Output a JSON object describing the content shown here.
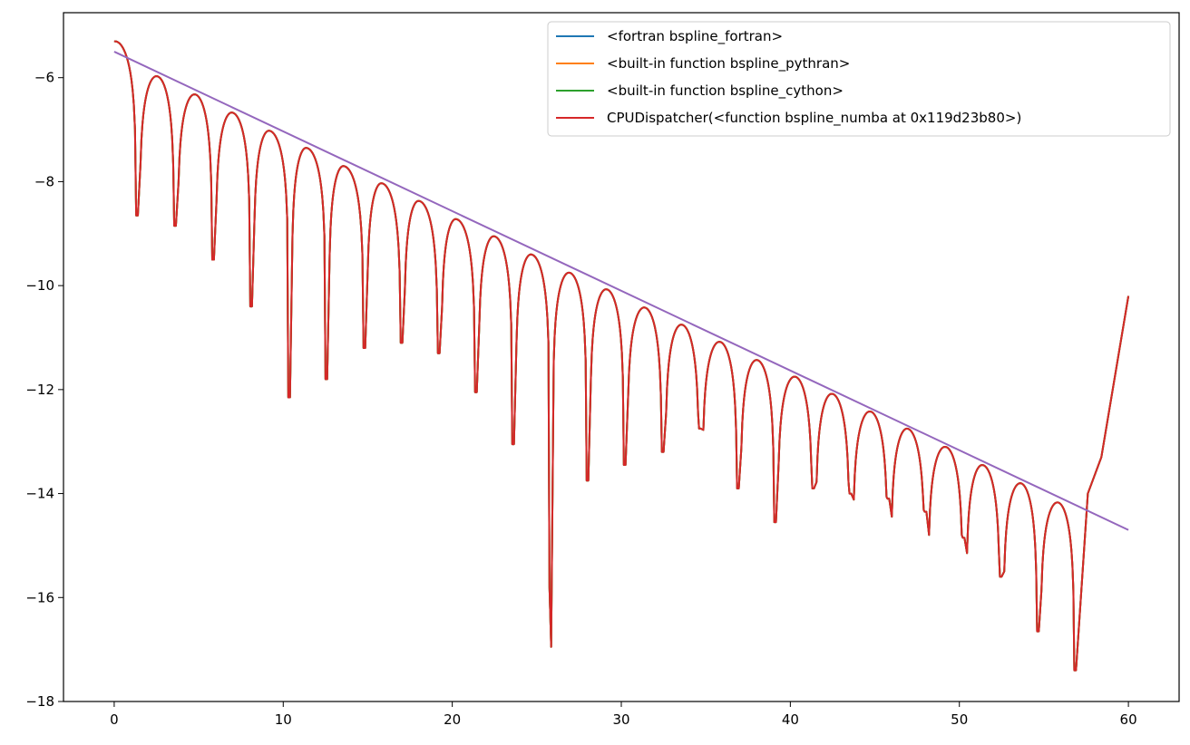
{
  "chart_data": {
    "type": "line",
    "title": "",
    "xlabel": "",
    "ylabel": "",
    "xlim": [
      -3,
      63
    ],
    "ylim": [
      -18,
      -4.75
    ],
    "xticks": [
      0,
      10,
      20,
      30,
      40,
      50,
      60
    ],
    "yticks": [
      -18,
      -16,
      -14,
      -12,
      -10,
      -8,
      -6
    ],
    "xtick_labels": [
      "0",
      "10",
      "20",
      "30",
      "40",
      "50",
      "60"
    ],
    "ytick_labels": [
      "−18",
      "−16",
      "−14",
      "−12",
      "−10",
      "−8",
      "−6"
    ],
    "grid": false,
    "legend_position": "top-right",
    "series": [
      {
        "name": "<fortran bspline_fortran>",
        "color": "#1f77b4",
        "minima": [
          {
            "x": 1.4,
            "y": -8.65
          },
          {
            "x": 3.65,
            "y": -8.85
          },
          {
            "x": 5.9,
            "y": -9.5
          },
          {
            "x": 8.15,
            "y": -10.4
          },
          {
            "x": 10.4,
            "y": -12.15
          },
          {
            "x": 12.6,
            "y": -11.8
          },
          {
            "x": 14.85,
            "y": -11.2
          },
          {
            "x": 17.05,
            "y": -11.1
          },
          {
            "x": 19.25,
            "y": -11.3
          },
          {
            "x": 21.45,
            "y": -12.05
          },
          {
            "x": 23.65,
            "y": -13.05
          },
          {
            "x": 25.85,
            "y": -16.95
          },
          {
            "x": 28.05,
            "y": -13.75
          },
          {
            "x": 30.25,
            "y": -13.45
          },
          {
            "x": 32.5,
            "y": -13.2
          },
          {
            "x": 34.7,
            "y": -12.75
          },
          {
            "x": 36.95,
            "y": -13.9
          },
          {
            "x": 39.15,
            "y": -14.55
          },
          {
            "x": 41.4,
            "y": -13.9
          },
          {
            "x": 43.6,
            "y": -14.0
          },
          {
            "x": 45.85,
            "y": -14.1
          },
          {
            "x": 48.05,
            "y": -14.35
          },
          {
            "x": 50.3,
            "y": -14.85
          },
          {
            "x": 52.5,
            "y": -15.6
          },
          {
            "x": 54.7,
            "y": -16.65
          },
          {
            "x": 56.9,
            "y": -17.4
          }
        ],
        "maxima": [
          {
            "x": 0.05,
            "y": -5.3
          },
          {
            "x": 2.5,
            "y": -5.97
          },
          {
            "x": 4.75,
            "y": -6.32
          },
          {
            "x": 6.95,
            "y": -6.67
          },
          {
            "x": 9.15,
            "y": -7.02
          },
          {
            "x": 11.35,
            "y": -7.35
          },
          {
            "x": 13.55,
            "y": -7.7
          },
          {
            "x": 15.8,
            "y": -8.03
          },
          {
            "x": 18.0,
            "y": -8.37
          },
          {
            "x": 20.2,
            "y": -8.72
          },
          {
            "x": 22.45,
            "y": -9.05
          },
          {
            "x": 24.65,
            "y": -9.4
          },
          {
            "x": 26.9,
            "y": -9.75
          },
          {
            "x": 29.1,
            "y": -10.07
          },
          {
            "x": 31.35,
            "y": -10.42
          },
          {
            "x": 33.55,
            "y": -10.75
          },
          {
            "x": 35.8,
            "y": -11.08
          },
          {
            "x": 38.0,
            "y": -11.43
          },
          {
            "x": 40.25,
            "y": -11.75
          },
          {
            "x": 42.45,
            "y": -12.08
          },
          {
            "x": 44.7,
            "y": -12.42
          },
          {
            "x": 46.9,
            "y": -12.75
          },
          {
            "x": 49.15,
            "y": -13.1
          },
          {
            "x": 51.35,
            "y": -13.45
          },
          {
            "x": 53.6,
            "y": -13.8
          },
          {
            "x": 55.8,
            "y": -14.17
          }
        ],
        "end": [
          {
            "x": 57.6,
            "y": -14.0
          },
          {
            "x": 58.4,
            "y": -13.3
          },
          {
            "x": 60.0,
            "y": -10.2
          }
        ]
      },
      {
        "name": "<built-in function bspline_pythran>",
        "color": "#ff7f0e",
        "same_as": 0
      },
      {
        "name": "<built-in function bspline_cython>",
        "color": "#2ca02c",
        "same_as": 0
      },
      {
        "name": "CPUDispatcher(<function bspline_numba at 0x119d23b80>)",
        "color": "#d62728",
        "same_as": 0
      },
      {
        "name": "",
        "color": "#9467bd",
        "x": [
          0,
          60
        ],
        "y": [
          -5.5,
          -14.7
        ]
      }
    ]
  }
}
